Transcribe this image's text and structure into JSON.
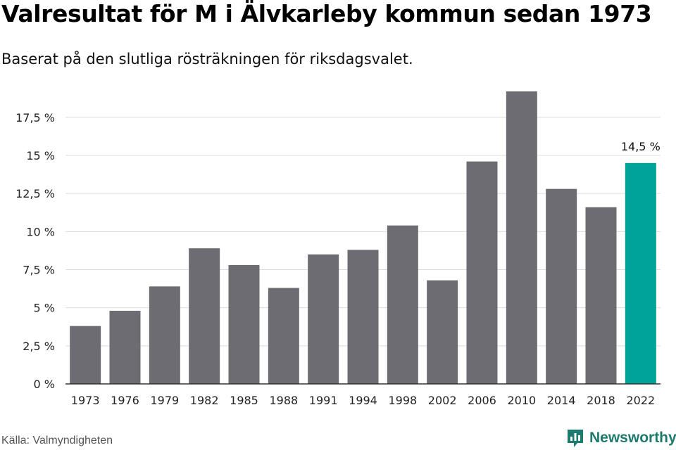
{
  "header": {
    "title": "Valresultat för M i Älvkarleby kommun sedan 1973",
    "subtitle": "Baserat på den slutliga rösträkningen för riksdagsvalet."
  },
  "footer": {
    "source": "Källa: Valmyndigheten",
    "brand": "Newsworthy",
    "brand_icon": "newsworthy-logo-icon"
  },
  "colors": {
    "bar": "#6d6c72",
    "highlight": "#00a398",
    "grid": "#dcdcdc",
    "axis": "#333333",
    "brand": "#1d7a6e"
  },
  "chart_data": {
    "type": "bar",
    "title": "Valresultat för M i Älvkarleby kommun sedan 1973",
    "subtitle": "Baserat på den slutliga rösträkningen för riksdagsvalet.",
    "categories": [
      "1973",
      "1976",
      "1979",
      "1982",
      "1985",
      "1988",
      "1991",
      "1994",
      "1998",
      "2002",
      "2006",
      "2010",
      "2014",
      "2018",
      "2022"
    ],
    "values": [
      3.8,
      4.8,
      6.4,
      8.9,
      7.8,
      6.3,
      8.5,
      8.8,
      10.4,
      6.8,
      14.6,
      19.2,
      12.8,
      11.6,
      14.5
    ],
    "highlight_index": 14,
    "data_labels": [
      {
        "index": 14,
        "text": "14,5 %"
      }
    ],
    "ylim": [
      0,
      19.2
    ],
    "yticks": [
      0,
      2.5,
      5,
      7.5,
      10,
      12.5,
      15,
      17.5
    ],
    "ytick_labels": [
      "0 %",
      "2,5 %",
      "5 %",
      "7,5 %",
      "10 %",
      "12,5 %",
      "15 %",
      "17,5 %"
    ],
    "grid": true,
    "legend": "none"
  }
}
